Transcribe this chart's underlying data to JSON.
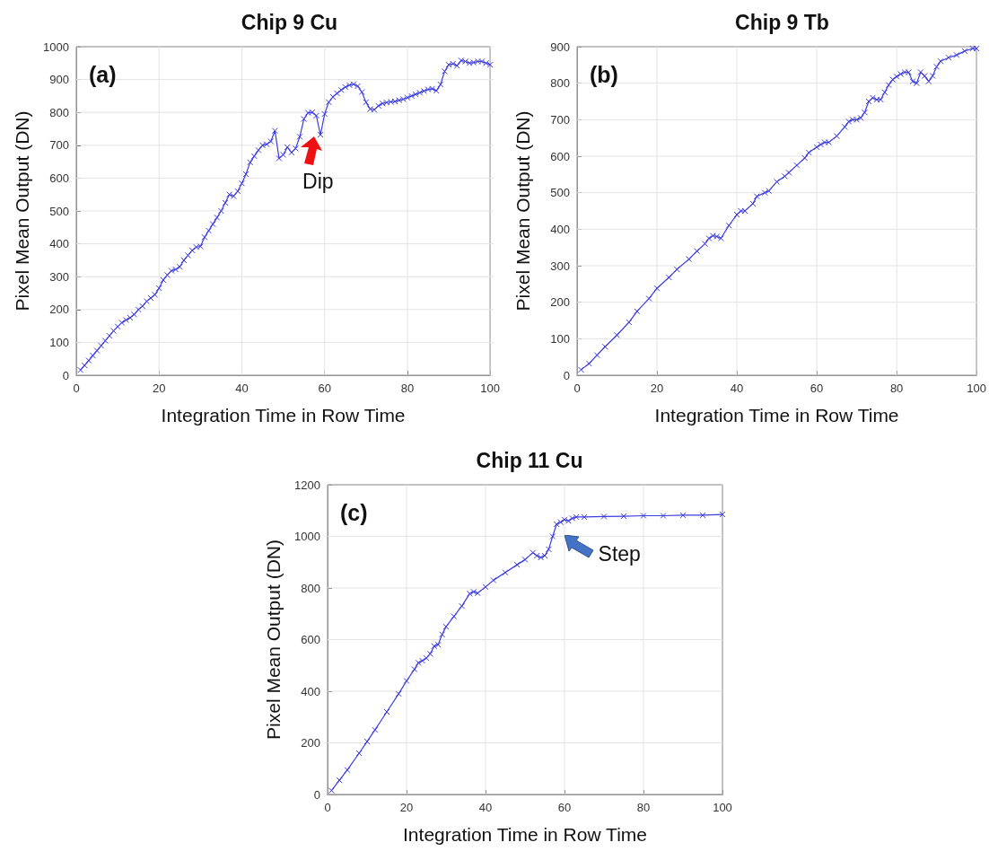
{
  "chart_data": [
    {
      "type": "line",
      "title": "Chip 9 Cu",
      "xlabel": "Integration Time in Row Time",
      "ylabel": "Pixel Mean Output (DN)",
      "marker": "cross",
      "grid": true,
      "xlim": [
        0,
        100
      ],
      "xticks": [
        0,
        20,
        40,
        60,
        80,
        100
      ],
      "ylim": [
        0,
        1000
      ],
      "yticks": [
        0,
        100,
        200,
        300,
        400,
        500,
        600,
        700,
        800,
        900,
        1000
      ],
      "annotations": [
        "(a)",
        {
          "text": "Dip",
          "x": 59,
          "y": 732
        }
      ],
      "x": [
        1,
        2,
        3,
        4,
        5,
        6,
        7,
        8,
        9,
        10,
        11,
        12,
        13,
        14,
        15,
        16,
        17,
        18,
        19,
        20,
        21,
        22,
        23,
        24,
        25,
        26,
        27,
        28,
        29,
        30,
        31,
        32,
        33,
        34,
        35,
        36,
        37,
        38,
        39,
        40,
        41,
        42,
        43,
        44,
        45,
        46,
        47,
        48,
        49,
        50,
        51,
        52,
        53,
        54,
        55,
        56,
        57,
        58,
        59,
        60,
        61,
        62,
        63,
        64,
        65,
        66,
        67,
        68,
        69,
        70,
        71,
        72,
        73,
        74,
        75,
        76,
        77,
        78,
        79,
        80,
        81,
        82,
        83,
        84,
        85,
        86,
        87,
        88,
        89,
        90,
        91,
        92,
        93,
        94,
        95,
        96,
        97,
        98,
        99,
        100
      ],
      "series": [
        {
          "color": "#3c3ce0",
          "values": [
            16,
            30,
            45,
            60,
            75,
            90,
            105,
            120,
            135,
            148,
            160,
            168,
            175,
            185,
            200,
            210,
            225,
            235,
            245,
            265,
            290,
            305,
            318,
            322,
            330,
            350,
            365,
            380,
            390,
            392,
            420,
            440,
            460,
            480,
            500,
            525,
            550,
            545,
            560,
            584,
            612,
            648,
            667,
            685,
            700,
            703,
            712,
            744,
            660,
            671,
            694,
            678,
            690,
            726,
            780,
            799,
            800,
            790,
            732,
            795,
            831,
            847,
            858,
            868,
            877,
            883,
            886,
            880,
            862,
            831,
            810,
            808,
            820,
            827,
            830,
            832,
            833,
            837,
            840,
            845,
            850,
            855,
            860,
            865,
            870,
            872,
            866,
            885,
            925,
            945,
            948,
            942,
            958,
            955,
            950,
            952,
            955,
            955,
            950,
            945
          ]
        }
      ]
    },
    {
      "type": "line",
      "title": "Chip 9 Tb",
      "xlabel": "Integration Time in Row Time",
      "ylabel": "Pixel Mean Output (DN)",
      "marker": "cross",
      "grid": true,
      "xlim": [
        0,
        100
      ],
      "xticks": [
        0,
        20,
        40,
        60,
        80,
        100
      ],
      "ylim": [
        0,
        900
      ],
      "yticks": [
        0,
        100,
        200,
        300,
        400,
        500,
        600,
        700,
        800,
        900
      ],
      "annotations": [
        "(b)"
      ],
      "x": [
        1,
        3,
        5,
        7,
        10,
        13,
        15,
        18,
        20,
        23,
        25,
        28,
        30,
        32,
        33,
        34,
        35,
        36,
        38,
        40,
        41,
        42,
        44,
        45,
        47,
        48,
        50,
        52,
        53,
        55,
        57,
        58,
        60,
        61,
        62,
        63,
        65,
        67,
        68,
        69,
        70,
        71,
        72,
        73,
        74,
        75,
        76,
        77,
        78,
        79,
        80,
        81,
        82,
        83,
        84,
        85,
        86,
        87,
        88,
        89,
        90,
        91,
        93,
        95,
        97,
        99,
        100
      ],
      "series": [
        {
          "color": "#3c3ce0",
          "values": [
            15,
            32,
            55,
            78,
            110,
            145,
            175,
            210,
            238,
            268,
            290,
            318,
            340,
            360,
            375,
            382,
            380,
            375,
            410,
            440,
            450,
            450,
            470,
            490,
            500,
            505,
            530,
            545,
            555,
            575,
            595,
            610,
            625,
            632,
            638,
            638,
            655,
            680,
            695,
            700,
            700,
            705,
            720,
            750,
            760,
            755,
            755,
            775,
            795,
            810,
            818,
            825,
            830,
            830,
            805,
            800,
            830,
            820,
            805,
            820,
            845,
            860,
            870,
            877,
            888,
            895,
            895
          ]
        }
      ]
    },
    {
      "type": "line",
      "title": "Chip 11 Cu",
      "xlabel": "Integration Time in Row Time",
      "ylabel": "Pixel Mean Output (DN)",
      "marker": "cross",
      "grid": true,
      "xlim": [
        0,
        100
      ],
      "xticks": [
        0,
        20,
        40,
        60,
        80,
        100
      ],
      "ylim": [
        0,
        1200
      ],
      "yticks": [
        0,
        200,
        400,
        600,
        800,
        1000,
        1200
      ],
      "annotations": [
        "(c)",
        {
          "text": "Step",
          "x": 59,
          "y": 1055
        }
      ],
      "x": [
        1,
        3,
        5,
        8,
        10,
        12,
        15,
        18,
        20,
        22,
        23,
        24,
        25,
        26,
        27,
        28,
        29,
        30,
        32,
        34,
        36,
        37,
        38,
        40,
        42,
        45,
        48,
        50,
        52,
        53,
        54,
        55,
        56,
        57,
        58,
        59,
        60,
        61,
        62,
        63,
        65,
        70,
        75,
        80,
        85,
        90,
        95,
        100
      ],
      "series": [
        {
          "color": "#3c3ce0",
          "values": [
            15,
            55,
            95,
            160,
            205,
            250,
            320,
            390,
            440,
            485,
            510,
            518,
            528,
            545,
            575,
            580,
            620,
            650,
            690,
            730,
            778,
            785,
            780,
            804,
            830,
            860,
            890,
            910,
            937,
            925,
            918,
            925,
            950,
            1000,
            1047,
            1055,
            1065,
            1060,
            1070,
            1075,
            1075,
            1077,
            1078,
            1080,
            1080,
            1082,
            1082,
            1085
          ]
        }
      ]
    }
  ]
}
